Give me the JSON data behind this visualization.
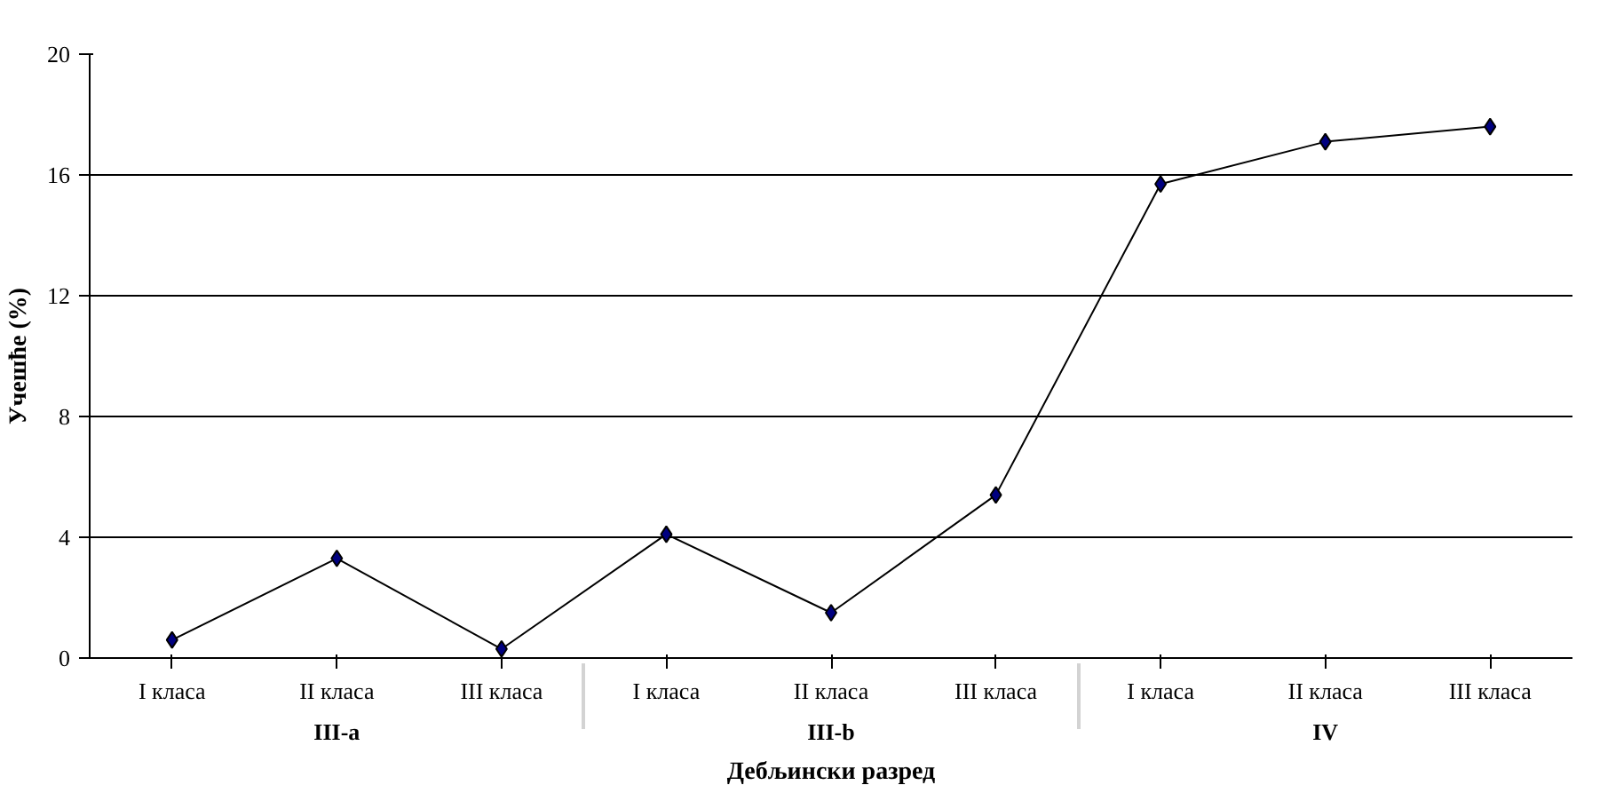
{
  "chart_data": {
    "type": "line",
    "xlabel": "Дебљински разред",
    "ylabel": "Учешће (%)",
    "categories": [
      "I класа",
      "II класа",
      "III класа",
      "I класа",
      "II класа",
      "III класа",
      "I класа",
      "II класа",
      "III класа"
    ],
    "annotations": [
      "III-a",
      "III-b",
      "IV"
    ],
    "values": [
      0.6,
      3.3,
      0.3,
      4.1,
      1.5,
      5.4,
      15.7,
      17.1,
      17.6
    ],
    "color": "#000080",
    "marker": "diamond",
    "line_style": "solid",
    "ylim": [
      0,
      20
    ],
    "yticks": [
      0,
      4,
      8,
      12,
      16,
      20
    ],
    "grid": "y"
  }
}
